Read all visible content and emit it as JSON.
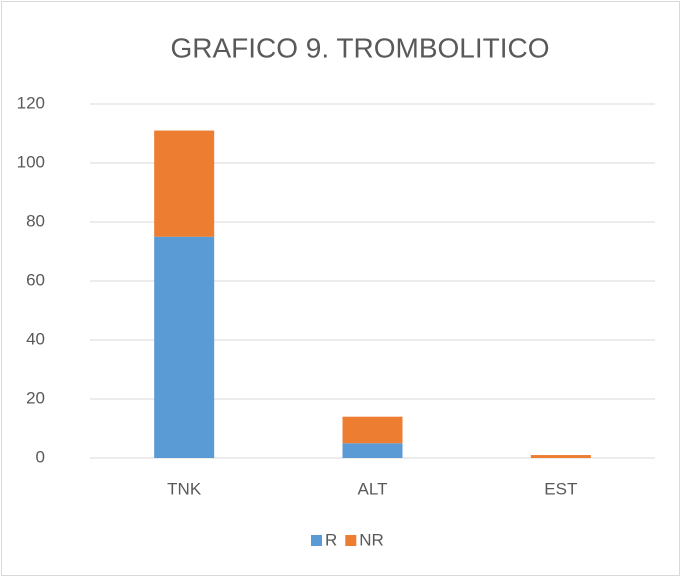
{
  "chart_data": {
    "type": "stacked_bar",
    "title": "GRAFICO 9. TROMBOLITICO",
    "categories": [
      "TNK",
      "ALT",
      "EST"
    ],
    "series": [
      {
        "name": "R",
        "color": "#5b9bd5",
        "values": [
          75,
          5,
          0
        ]
      },
      {
        "name": "NR",
        "color": "#ed7d31",
        "values": [
          36,
          9,
          1
        ]
      }
    ],
    "ylim": [
      0,
      120
    ],
    "yticks": [
      0,
      20,
      40,
      60,
      80,
      100,
      120
    ],
    "grid": true,
    "legend": "bottom"
  }
}
